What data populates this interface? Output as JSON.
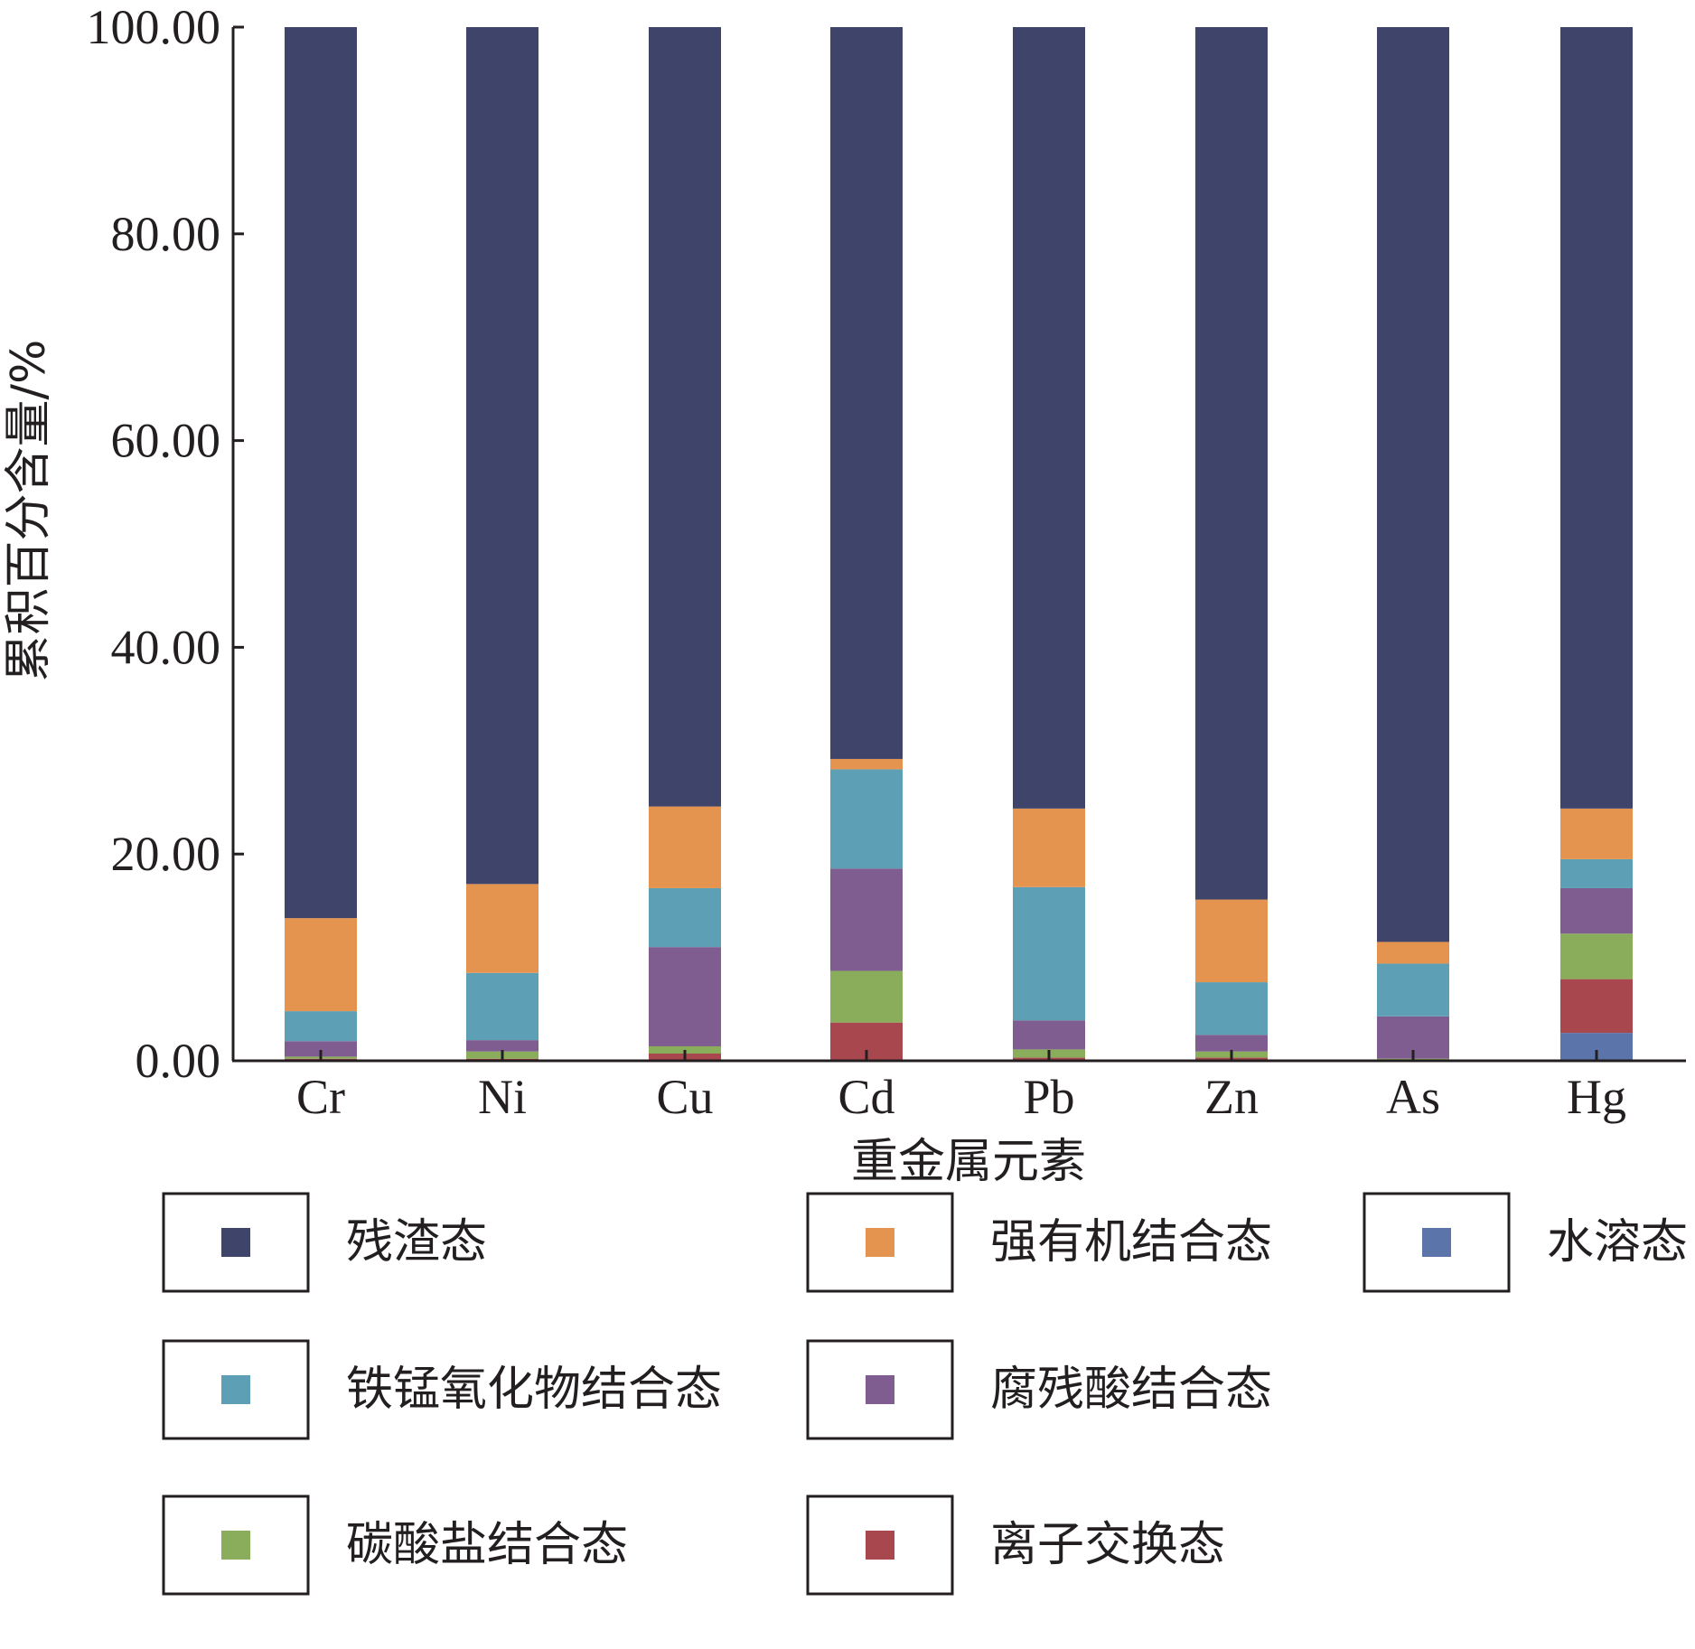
{
  "chart_data": {
    "type": "bar",
    "stacked": true,
    "title": "",
    "xlabel": "重金属元素",
    "ylabel": "累积百分含量/%",
    "ylim": [
      0,
      100
    ],
    "yticks": [
      "0.00",
      "20.00",
      "40.00",
      "60.00",
      "80.00",
      "100.00"
    ],
    "categories": [
      "Cr",
      "Ni",
      "Cu",
      "Cd",
      "Pb",
      "Zn",
      "As",
      "Hg"
    ],
    "grid": false,
    "legend_position": "bottom",
    "series": [
      {
        "name": "水溶态",
        "color": "#5b75ab",
        "values": [
          0.1,
          0.1,
          0.1,
          0.1,
          0.1,
          0.1,
          0.1,
          2.7
        ]
      },
      {
        "name": "离子交换态",
        "color": "#a8484e",
        "values": [
          0.1,
          0.1,
          0.6,
          3.6,
          0.2,
          0.2,
          0.0,
          5.2
        ]
      },
      {
        "name": "碳酸盐结合态",
        "color": "#8aad5c",
        "values": [
          0.2,
          0.7,
          0.7,
          5.0,
          0.8,
          0.6,
          0.1,
          4.4
        ]
      },
      {
        "name": "腐残酸结合态",
        "color": "#7f5d90",
        "values": [
          1.5,
          1.1,
          9.6,
          9.9,
          2.8,
          1.6,
          4.1,
          4.4
        ]
      },
      {
        "name": "铁锰氧化物结合态",
        "color": "#5da0b5",
        "values": [
          2.9,
          6.5,
          5.7,
          9.6,
          12.9,
          5.1,
          5.1,
          2.8
        ]
      },
      {
        "name": "强有机结合态",
        "color": "#e5944f",
        "values": [
          9.0,
          8.6,
          7.9,
          1.0,
          7.6,
          8.0,
          2.1,
          4.9
        ]
      },
      {
        "name": "残渣态",
        "color": "#3f446a",
        "values": [
          86.2,
          82.9,
          75.4,
          70.8,
          75.6,
          84.4,
          88.5,
          75.6
        ]
      }
    ],
    "legend_order": [
      "残渣态",
      "强有机结合态",
      "水溶态",
      "铁锰氧化物结合态",
      "腐残酸结合态",
      "碳酸盐结合态",
      "离子交换态"
    ]
  }
}
